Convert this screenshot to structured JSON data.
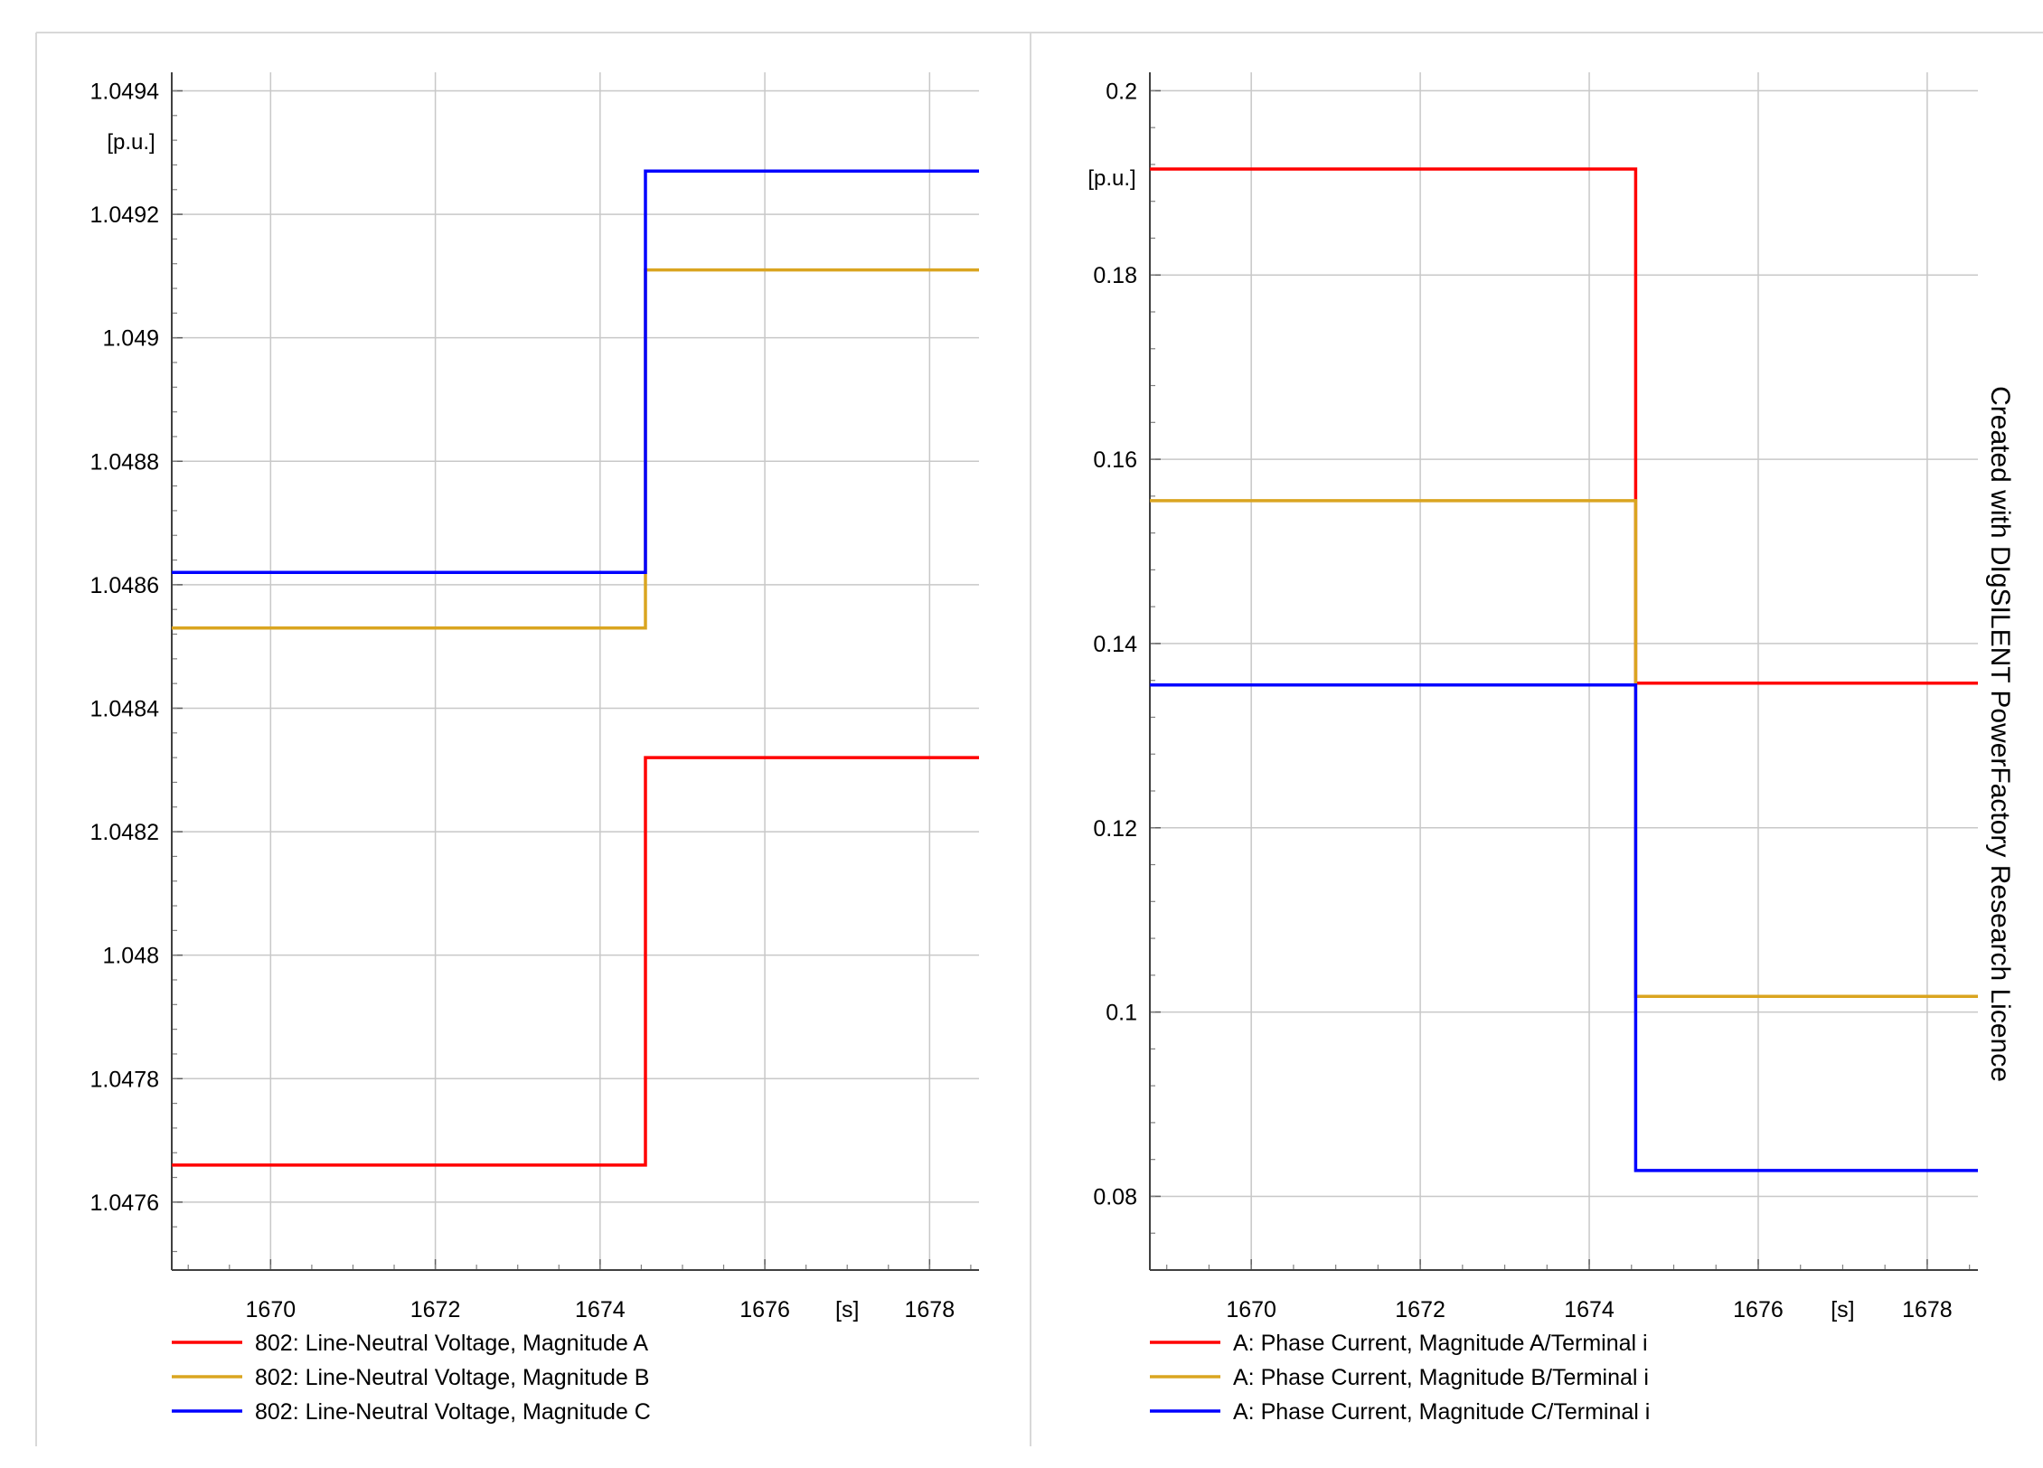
{
  "watermark": "Created with DIgSILENT PowerFactory Research Licence",
  "chart_data": [
    {
      "type": "line",
      "step": true,
      "unit_label": "[p.u.]",
      "x_unit_label": "[s]",
      "xlim": [
        1668.8,
        1678.6
      ],
      "x_ticks": [
        "1670",
        "1672",
        "1674",
        "1676",
        "1678"
      ],
      "ylim": [
        1.04749,
        1.04943
      ],
      "y_ticks": [
        "1.0476",
        "1.0478",
        "1.048",
        "1.0482",
        "1.0484",
        "1.0486",
        "1.0488",
        "1.049",
        "1.0492",
        "1.0494"
      ],
      "grid": true,
      "legend_position": "bottom",
      "series": [
        {
          "name": "802: Line-Neutral Voltage, Magnitude A",
          "color": "#ff0000",
          "x": [
            1668.8,
            1674.55,
            1674.55,
            1678.6
          ],
          "y": [
            1.04766,
            1.04766,
            1.04832,
            1.04832
          ]
        },
        {
          "name": "802: Line-Neutral Voltage, Magnitude B",
          "color": "#daa520",
          "x": [
            1668.8,
            1674.55,
            1674.55,
            1678.6
          ],
          "y": [
            1.04853,
            1.04853,
            1.04911,
            1.04911
          ]
        },
        {
          "name": "802: Line-Neutral Voltage, Magnitude C",
          "color": "#0000ff",
          "x": [
            1668.8,
            1674.55,
            1674.55,
            1678.6
          ],
          "y": [
            1.04862,
            1.04862,
            1.04927,
            1.04927
          ]
        }
      ]
    },
    {
      "type": "line",
      "step": true,
      "unit_label": "[p.u.]",
      "x_unit_label": "[s]",
      "xlim": [
        1668.8,
        1678.6
      ],
      "x_ticks": [
        "1670",
        "1672",
        "1674",
        "1676",
        "1678"
      ],
      "ylim": [
        0.072,
        0.202
      ],
      "y_ticks": [
        "0.08",
        "0.1",
        "0.12",
        "0.14",
        "0.16",
        "0.18",
        "0.2"
      ],
      "grid": true,
      "legend_position": "bottom",
      "series": [
        {
          "name": "A: Phase Current, Magnitude A/Terminal i",
          "color": "#ff0000",
          "x": [
            1668.8,
            1674.55,
            1674.55,
            1678.6
          ],
          "y": [
            0.1915,
            0.1915,
            0.1357,
            0.1357
          ]
        },
        {
          "name": "A: Phase Current, Magnitude B/Terminal i",
          "color": "#daa520",
          "x": [
            1668.8,
            1674.55,
            1674.55,
            1678.6
          ],
          "y": [
            0.1555,
            0.1555,
            0.1017,
            0.1017
          ]
        },
        {
          "name": "A: Phase Current, Magnitude C/Terminal i",
          "color": "#0000ff",
          "x": [
            1668.8,
            1674.55,
            1674.55,
            1678.6
          ],
          "y": [
            0.1355,
            0.1355,
            0.0828,
            0.0828
          ]
        }
      ]
    }
  ]
}
